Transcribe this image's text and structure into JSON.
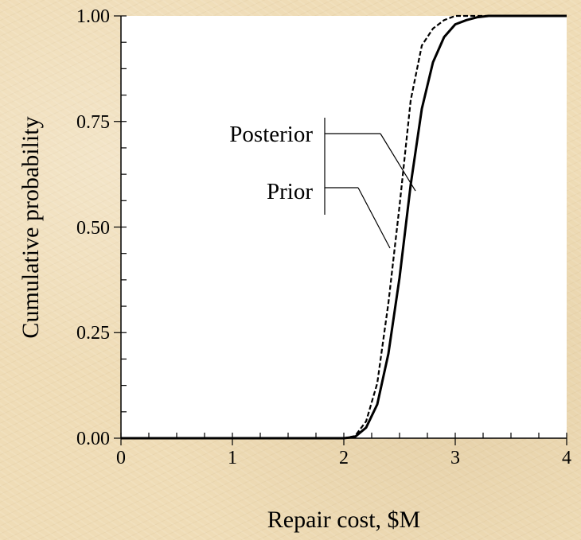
{
  "chart_data": {
    "type": "line",
    "title": "",
    "xlabel": "Repair cost, $M",
    "ylabel": "Cumulative probability",
    "xlim": [
      0,
      4
    ],
    "ylim": [
      0,
      1
    ],
    "x_ticks": [
      "0",
      "1",
      "2",
      "3",
      "4"
    ],
    "y_ticks": [
      "0.00",
      "0.25",
      "0.50",
      "0.75",
      "1.00"
    ],
    "grid": false,
    "series": [
      {
        "name": "Prior",
        "style": "dashed",
        "x": [
          0,
          1.8,
          2.0,
          2.1,
          2.2,
          2.3,
          2.4,
          2.5,
          2.6,
          2.7,
          2.8,
          2.9,
          3.0,
          3.1,
          3.2,
          4.0
        ],
        "y": [
          0,
          0,
          0,
          0.005,
          0.04,
          0.13,
          0.32,
          0.55,
          0.8,
          0.93,
          0.97,
          0.99,
          1.0,
          1.0,
          1.0,
          1.0
        ]
      },
      {
        "name": "Posterior",
        "style": "solid",
        "x": [
          0,
          2.0,
          2.1,
          2.2,
          2.3,
          2.4,
          2.5,
          2.6,
          2.7,
          2.8,
          2.9,
          3.0,
          3.1,
          3.2,
          3.3,
          3.4,
          4.0
        ],
        "y": [
          0,
          0,
          0.003,
          0.025,
          0.08,
          0.2,
          0.38,
          0.6,
          0.78,
          0.89,
          0.95,
          0.98,
          0.99,
          0.997,
          1.0,
          1.0,
          1.0
        ]
      }
    ],
    "annotations": [
      {
        "text": "Posterior",
        "points_to": {
          "series": "Posterior",
          "x": 2.65,
          "y": 0.6
        }
      },
      {
        "text": "Prior",
        "points_to": {
          "series": "Prior",
          "x": 2.47,
          "y": 0.45
        }
      }
    ]
  }
}
